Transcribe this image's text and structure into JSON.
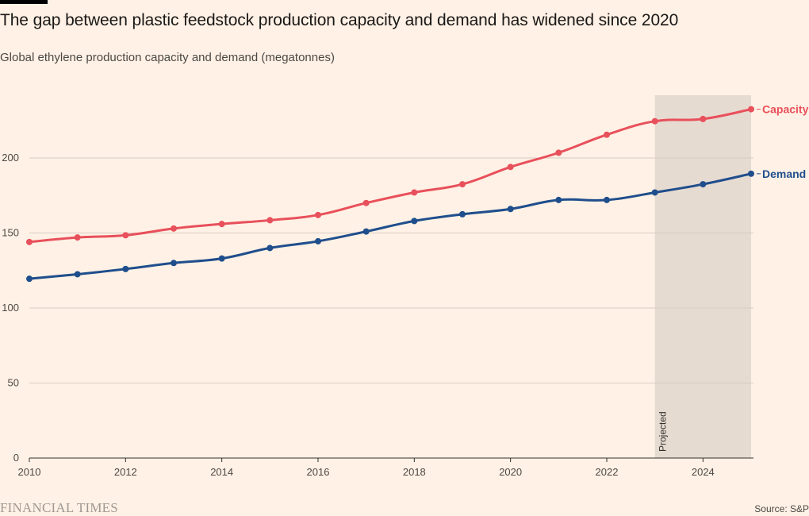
{
  "header": {
    "title": "The gap between plastic feedstock production capacity and demand has widened since 2020",
    "subtitle": "Global ethylene production capacity and demand (megatonnes)"
  },
  "footer": {
    "brand": "FINANCIAL TIMES",
    "source": "Source: S&P"
  },
  "colors": {
    "background": "#fff1e5",
    "capacity": "#e8505b",
    "demand": "#1f4e8c",
    "projected_band": "#e6dbd1",
    "grid": "#d7ccc3"
  },
  "chart_data": {
    "type": "line",
    "title": "The gap between plastic feedstock production capacity and demand has widened since 2020",
    "subtitle": "Global ethylene production capacity and demand (megatonnes)",
    "xlabel": "",
    "ylabel": "",
    "x": [
      2010,
      2011,
      2012,
      2013,
      2014,
      2015,
      2016,
      2017,
      2018,
      2019,
      2020,
      2021,
      2022,
      2023,
      2024,
      2025
    ],
    "xlim": [
      2010,
      2025
    ],
    "ylim": [
      0,
      240
    ],
    "x_ticks": [
      "2010",
      "2012",
      "2014",
      "2016",
      "2018",
      "2020",
      "2022",
      "2024"
    ],
    "y_ticks": [
      "0",
      "50",
      "100",
      "150",
      "200"
    ],
    "grid": true,
    "legend": "direct labels at line ends (right)",
    "projected_band": {
      "from": 2023,
      "to": 2025,
      "label": "Projected"
    },
    "series": [
      {
        "name": "Capacity",
        "color": "#e8505b",
        "values": [
          144,
          147,
          148.5,
          153,
          156,
          158.5,
          162,
          170,
          177,
          182.5,
          194,
          203.5,
          215.5,
          224.5,
          226,
          232.5
        ]
      },
      {
        "name": "Demand",
        "color": "#1f4e8c",
        "values": [
          119.5,
          122.5,
          126,
          130,
          133,
          140,
          144.5,
          151,
          158,
          162.5,
          166,
          172,
          172,
          177,
          182.5,
          189.5
        ]
      }
    ]
  }
}
